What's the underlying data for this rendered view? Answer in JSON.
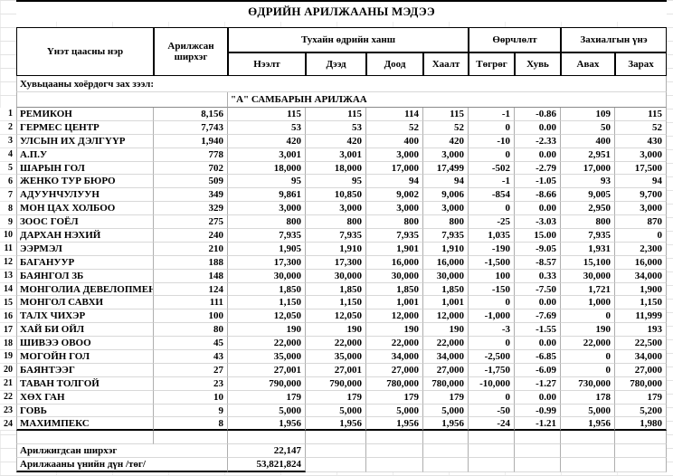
{
  "title": "ӨДРИЙН АРИЛЖААНЫ МЭДЭЭ",
  "header": {
    "name": "Үнэт цаасны нэр",
    "traded_qty": "Арилжсан ширхэг",
    "day_price": "Тухайн өдрийн ханш",
    "change": "Өөрчлөлт",
    "order_price": "Захиалгын үнэ",
    "open": "Нээлт",
    "high": "Дээд",
    "low": "Доод",
    "close": "Хаалт",
    "tugrug": "Төгрөг",
    "percent": "Хувь",
    "buy": "Авах",
    "sell": "Зарах"
  },
  "section_label": "Хувьцааны хоёрдогч зах зээл:",
  "board_label": "\"А\" САМБАРЫН АРИЛЖАА",
  "rows": [
    {
      "no": "1",
      "name": "РЕМИКОН",
      "qty": "8,156",
      "open": "115",
      "high": "115",
      "low": "114",
      "close": "115",
      "chg": "-1",
      "pct": "-0.86",
      "buy": "109",
      "sell": "115"
    },
    {
      "no": "2",
      "name": "ГЕРМЕС ЦЕНТР",
      "qty": "7,743",
      "open": "53",
      "high": "53",
      "low": "52",
      "close": "52",
      "chg": "0",
      "pct": "0.00",
      "buy": "50",
      "sell": "52"
    },
    {
      "no": "3",
      "name": "УЛСЫН ИХ ДЭЛГҮҮР",
      "qty": "1,940",
      "open": "420",
      "high": "420",
      "low": "400",
      "close": "420",
      "chg": "-10",
      "pct": "-2.33",
      "buy": "400",
      "sell": "430"
    },
    {
      "no": "4",
      "name": "А.П.У",
      "qty": "778",
      "open": "3,001",
      "high": "3,001",
      "low": "3,000",
      "close": "3,000",
      "chg": "0",
      "pct": "0.00",
      "buy": "2,951",
      "sell": "3,000"
    },
    {
      "no": "5",
      "name": "ШАРЫН ГОЛ",
      "qty": "702",
      "open": "18,000",
      "high": "18,000",
      "low": "17,000",
      "close": "17,499",
      "chg": "-502",
      "pct": "-2.79",
      "buy": "17,000",
      "sell": "17,500"
    },
    {
      "no": "6",
      "name": "ЖЕНКО ТУР БЮРО",
      "qty": "509",
      "open": "95",
      "high": "95",
      "low": "94",
      "close": "94",
      "chg": "-1",
      "pct": "-1.05",
      "buy": "93",
      "sell": "94"
    },
    {
      "no": "7",
      "name": "АДУУНЧУЛУУН",
      "qty": "349",
      "open": "9,861",
      "high": "10,850",
      "low": "9,002",
      "close": "9,006",
      "chg": "-854",
      "pct": "-8.66",
      "buy": "9,005",
      "sell": "9,700"
    },
    {
      "no": "8",
      "name": "МОН ЦАХ ХОЛБОО",
      "qty": "329",
      "open": "3,000",
      "high": "3,000",
      "low": "3,000",
      "close": "3,000",
      "chg": "0",
      "pct": "0.00",
      "buy": "2,950",
      "sell": "3,000"
    },
    {
      "no": "9",
      "name": "ЗООС ГОЁЛ",
      "qty": "275",
      "open": "800",
      "high": "800",
      "low": "800",
      "close": "800",
      "chg": "-25",
      "pct": "-3.03",
      "buy": "800",
      "sell": "870"
    },
    {
      "no": "10",
      "name": "ДАРХАН НЭХИЙ",
      "qty": "240",
      "open": "7,935",
      "high": "7,935",
      "low": "7,935",
      "close": "7,935",
      "chg": "1,035",
      "pct": "15.00",
      "buy": "7,935",
      "sell": "0"
    },
    {
      "no": "11",
      "name": "ЭЭРМЭЛ",
      "qty": "210",
      "open": "1,905",
      "high": "1,910",
      "low": "1,901",
      "close": "1,910",
      "chg": "-190",
      "pct": "-9.05",
      "buy": "1,931",
      "sell": "2,300"
    },
    {
      "no": "12",
      "name": "БАГАНУУР",
      "qty": "188",
      "open": "17,300",
      "high": "17,300",
      "low": "16,000",
      "close": "16,000",
      "chg": "-1,500",
      "pct": "-8.57",
      "buy": "15,100",
      "sell": "16,000"
    },
    {
      "no": "13",
      "name": "БАЯНГОЛ ЗБ",
      "qty": "148",
      "open": "30,000",
      "high": "30,000",
      "low": "30,000",
      "close": "30,000",
      "chg": "100",
      "pct": "0.33",
      "buy": "30,000",
      "sell": "34,000"
    },
    {
      "no": "14",
      "name": "МОНГОЛИА ДЕВЕЛОПМЕНТ",
      "qty": "124",
      "open": "1,850",
      "high": "1,850",
      "low": "1,850",
      "close": "1,850",
      "chg": "-150",
      "pct": "-7.50",
      "buy": "1,721",
      "sell": "1,900"
    },
    {
      "no": "15",
      "name": "МОНГОЛ САВХИ",
      "qty": "111",
      "open": "1,150",
      "high": "1,150",
      "low": "1,001",
      "close": "1,001",
      "chg": "0",
      "pct": "0.00",
      "buy": "1,000",
      "sell": "1,150"
    },
    {
      "no": "16",
      "name": "ТАЛХ ЧИХЭР",
      "qty": "100",
      "open": "12,050",
      "high": "12,050",
      "low": "12,000",
      "close": "12,000",
      "chg": "-1,000",
      "pct": "-7.69",
      "buy": "0",
      "sell": "11,999"
    },
    {
      "no": "17",
      "name": "ХАЙ БИ ОЙЛ",
      "qty": "80",
      "open": "190",
      "high": "190",
      "low": "190",
      "close": "190",
      "chg": "-3",
      "pct": "-1.55",
      "buy": "190",
      "sell": "193"
    },
    {
      "no": "18",
      "name": "ШИВЭЭ ОВОО",
      "qty": "45",
      "open": "22,000",
      "high": "22,000",
      "low": "22,000",
      "close": "22,000",
      "chg": "0",
      "pct": "0.00",
      "buy": "22,000",
      "sell": "22,500"
    },
    {
      "no": "19",
      "name": "МОГОЙН ГОЛ",
      "qty": "43",
      "open": "35,000",
      "high": "35,000",
      "low": "34,000",
      "close": "34,000",
      "chg": "-2,500",
      "pct": "-6.85",
      "buy": "0",
      "sell": "34,000"
    },
    {
      "no": "20",
      "name": "БАЯНТЭЭГ",
      "qty": "27",
      "open": "27,001",
      "high": "27,001",
      "low": "27,000",
      "close": "27,000",
      "chg": "-1,750",
      "pct": "-6.09",
      "buy": "0",
      "sell": "27,000"
    },
    {
      "no": "21",
      "name": "ТАВАН ТОЛГОЙ",
      "qty": "23",
      "open": "790,000",
      "high": "790,000",
      "low": "780,000",
      "close": "780,000",
      "chg": "-10,000",
      "pct": "-1.27",
      "buy": "730,000",
      "sell": "780,000"
    },
    {
      "no": "22",
      "name": "ХӨХ ГАН",
      "qty": "10",
      "open": "179",
      "high": "179",
      "low": "179",
      "close": "179",
      "chg": "0",
      "pct": "0.00",
      "buy": "178",
      "sell": "179"
    },
    {
      "no": "23",
      "name": "ГОВЬ",
      "qty": "9",
      "open": "5,000",
      "high": "5,000",
      "low": "5,000",
      "close": "5,000",
      "chg": "-50",
      "pct": "-0.99",
      "buy": "5,000",
      "sell": "5,200"
    },
    {
      "no": "24",
      "name": "МАХИМПЕКС",
      "qty": "8",
      "open": "1,956",
      "high": "1,956",
      "low": "1,956",
      "close": "1,956",
      "chg": "-24",
      "pct": "-1.21",
      "buy": "1,956",
      "sell": "1,980"
    }
  ],
  "summary": [
    {
      "label": "Арилжигдсан ширхэг",
      "value": "22,147"
    },
    {
      "label": "Арилжааны үнийн дүн /төг/",
      "value": "53,821,824"
    }
  ],
  "colors": {
    "border_dark": "#000000",
    "border_light": "#d8d8d8",
    "text": "#000000",
    "background": "#ffffff"
  }
}
